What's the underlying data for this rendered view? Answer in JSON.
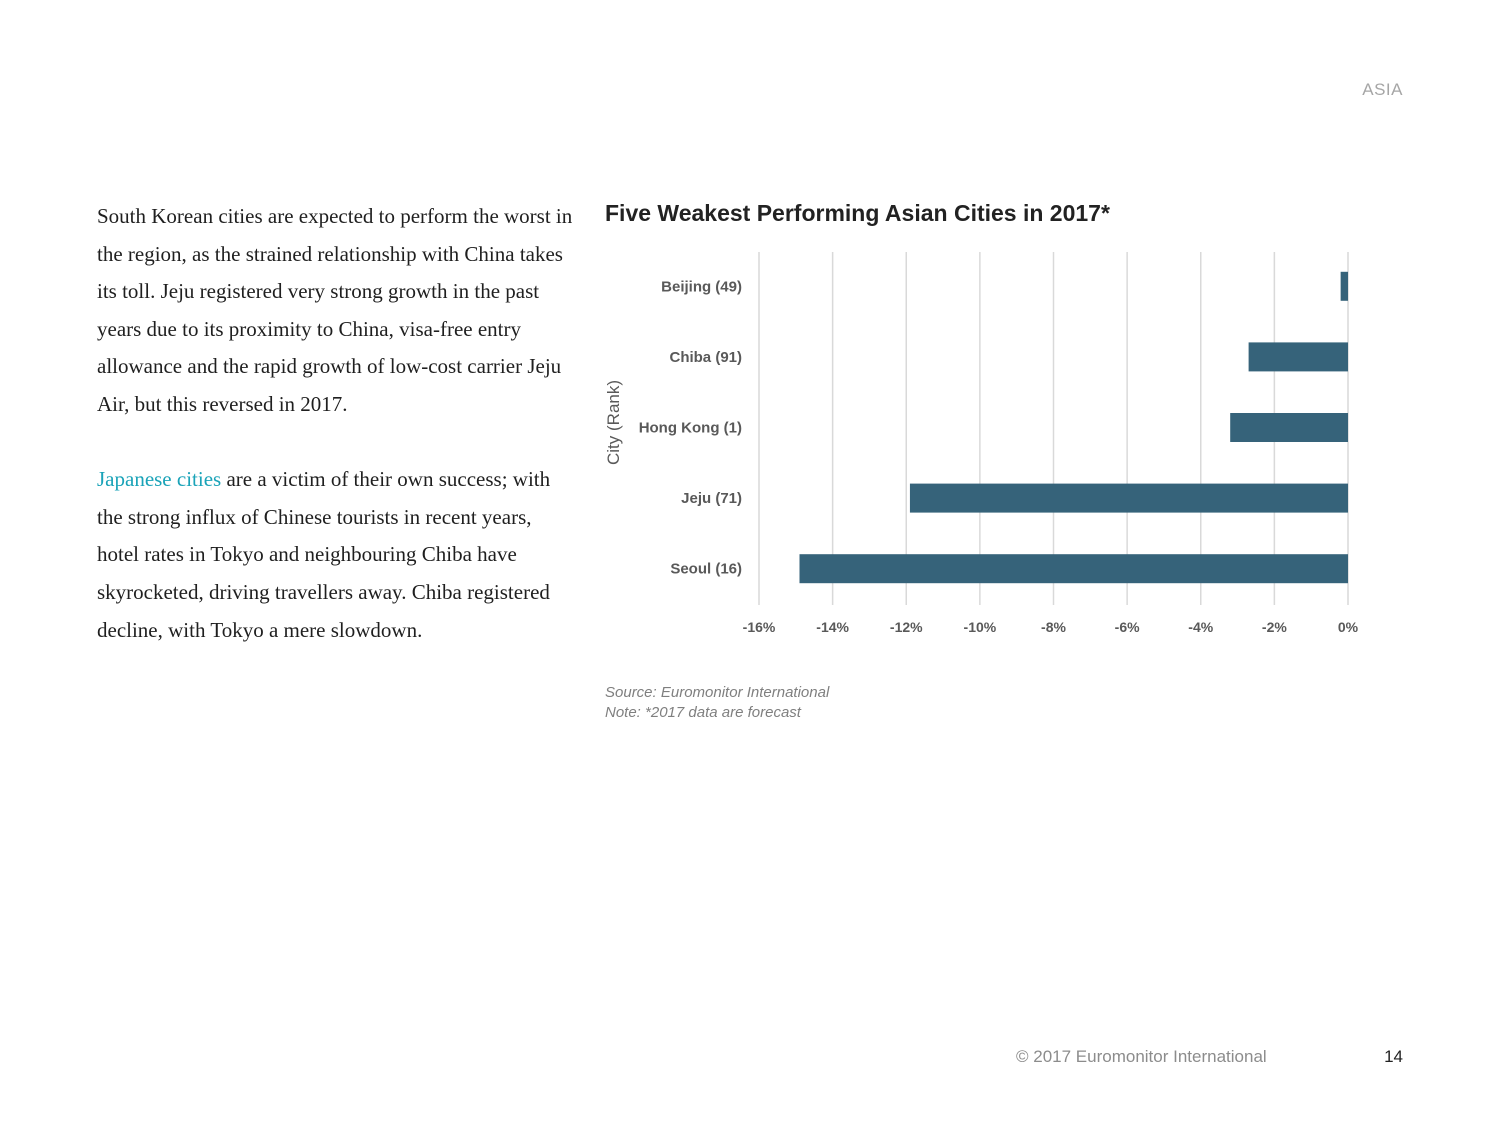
{
  "header": {
    "section": "ASIA"
  },
  "body": {
    "paragraph1": "South Korean cities are expected to perform the worst in the region, as the strained relationship with China takes its toll. Jeju registered very strong growth in the past years due to its proximity to China, visa-free entry allowance and the rapid growth of low-cost carrier Jeju Air, but this reversed in 2017.",
    "paragraph2_link": "Japanese cities",
    "paragraph2_rest": " are a victim of their own success; with the strong influx of Chinese tourists in recent years, hotel rates in Tokyo and neighbouring Chiba have skyrocketed, driving travellers away. Chiba registered decline, with Tokyo a mere slowdown."
  },
  "chart_data": {
    "type": "bar",
    "orientation": "horizontal",
    "title": "Five Weakest Performing Asian Cities in 2017*",
    "xlabel": "",
    "ylabel": "City (Rank)",
    "categories": [
      "Beijing (49)",
      "Chiba (91)",
      "Hong Kong (1)",
      "Jeju (71)",
      "Seoul (16)"
    ],
    "values": [
      -0.2,
      -2.7,
      -3.2,
      -11.9,
      -14.9
    ],
    "xlim": [
      -16,
      0
    ],
    "xticks": [
      -16,
      -14,
      -12,
      -10,
      -8,
      -6,
      -4,
      -2,
      0
    ],
    "tick_suffix": "%",
    "grid": true,
    "legend": "none",
    "color": "#36637a"
  },
  "notes": {
    "source": "Source: Euromonitor International",
    "note": "Note: *2017 data are forecast"
  },
  "footer": {
    "copyright": "© 2017 Euromonitor International",
    "page": "14"
  }
}
